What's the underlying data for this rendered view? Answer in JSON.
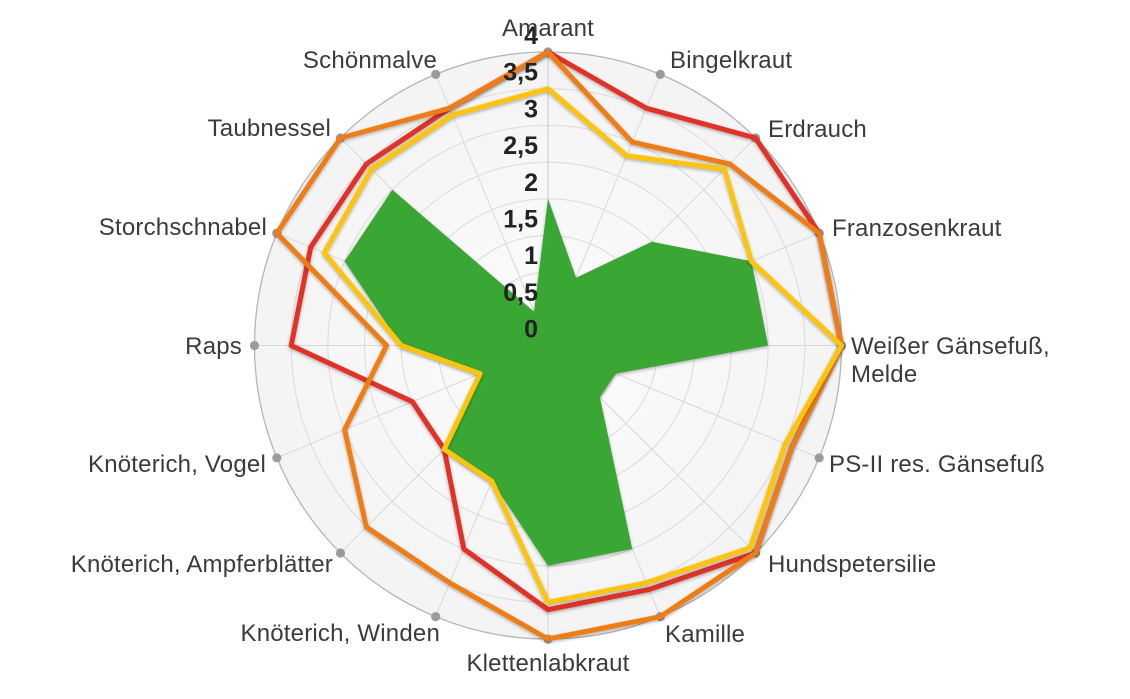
{
  "chart_data": {
    "type": "radar",
    "title": "",
    "categories": [
      "Amarant",
      "Bingelkraut",
      "Erdrauch",
      "Franzosenkraut",
      "Weißer Gänsefuß, Melde",
      "PS-II res. Gänsefuß",
      "Hundspetersilie",
      "Kamille",
      "Klettenlabkraut",
      "Knöterich, Winden",
      "Knöterich, Ampferblätter",
      "Knöterich, Vogel",
      "Raps",
      "Storchschnabel",
      "Taubnessel",
      "Schönmalve"
    ],
    "category_label_lines": {
      "4": [
        "Weißer Gänsefuß,",
        "Melde"
      ]
    },
    "axis": {
      "min": 0,
      "max": 4,
      "step": 0.5,
      "tick_labels": [
        "0",
        "0,5",
        "1",
        "1,5",
        "2",
        "2,5",
        "3",
        "3,5",
        "4"
      ]
    },
    "series": [
      {
        "name": "green-area",
        "style": "filled-area",
        "color": "#35a42f",
        "values": [
          2,
          1,
          2,
          3,
          3,
          1,
          1,
          3,
          3,
          2,
          2,
          1,
          2,
          3,
          3,
          0.5
        ]
      },
      {
        "name": "red-line",
        "style": "line",
        "color": "#e03028",
        "values": [
          4,
          3.5,
          4,
          4,
          4,
          3.6,
          4,
          3.6,
          3.6,
          3,
          2,
          2,
          3.5,
          3.5,
          3.5,
          3.5
        ]
      },
      {
        "name": "orange-line",
        "style": "line",
        "color": "#ef7d17",
        "values": [
          4,
          3,
          3.5,
          4,
          4,
          3.6,
          4,
          4,
          4,
          3.5,
          3.5,
          3,
          2.2,
          4,
          4,
          3.5
        ]
      },
      {
        "name": "yellow-line",
        "style": "line",
        "color": "#fcc40d",
        "values": [
          3.5,
          2.8,
          3.4,
          3,
          4,
          3.5,
          3.9,
          3.5,
          3.5,
          2,
          2,
          1,
          2,
          3.3,
          3.4,
          3.4
        ]
      }
    ],
    "layout_hints": {
      "grid": "on",
      "legend": "none",
      "axis_dots_color": "#9b9b9b",
      "grid_color": "#dadada",
      "outer_ring_color": "#b5b5b5",
      "plot_fill_center": "#fcfcfc",
      "plot_fill_edge": "#f1f1f1",
      "tick_color": "#222222",
      "label_color": "#3b3b3b"
    }
  }
}
